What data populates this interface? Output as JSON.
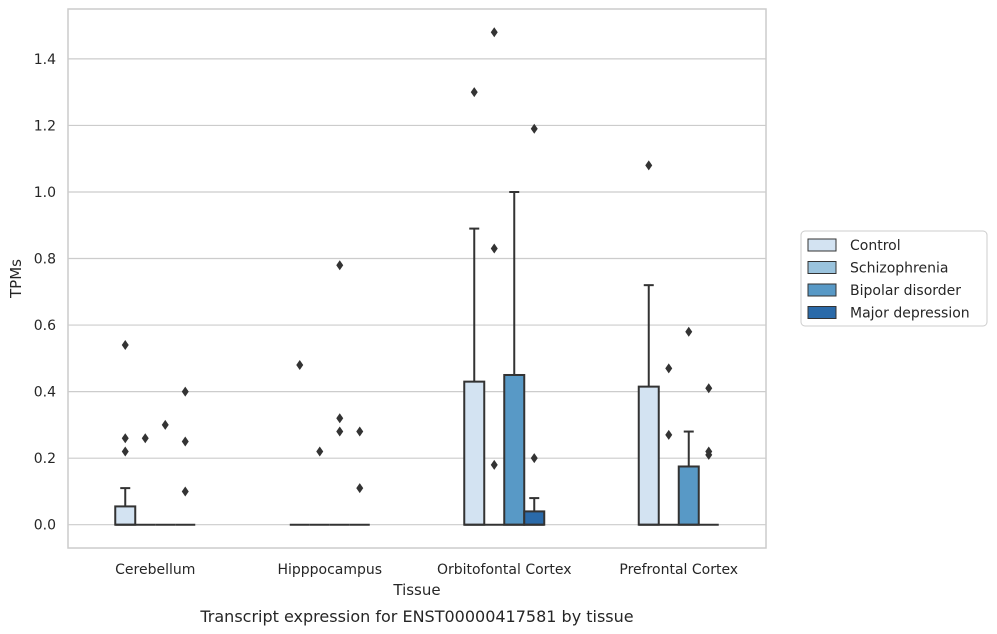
{
  "chart_data": {
    "type": "boxplot",
    "xlabel": "Tissue",
    "ylabel": "TPMs",
    "caption": "Transcript expression for ENST00000417581 by tissue",
    "ylim": [
      -0.07,
      1.55
    ],
    "yticks": [
      "0.0",
      "0.2",
      "0.4",
      "0.6",
      "0.8",
      "1.0",
      "1.2",
      "1.4"
    ],
    "grid": "horizontal",
    "legend_position": "right",
    "categories": [
      "Cerebellum",
      "Hipppocampus",
      "Orbitofontal Cortex",
      "Prefrontal Cortex"
    ],
    "series": [
      {
        "name": "Control",
        "color": "#d3e3f2",
        "boxes": [
          {
            "q1": 0,
            "median": 0,
            "q3": 0.055,
            "whisker_high": 0.11,
            "outliers": [
              0.22,
              0.26,
              0.54
            ]
          },
          {
            "q1": 0,
            "median": 0,
            "q3": 0,
            "whisker_high": 0,
            "outliers": [
              0.48
            ]
          },
          {
            "q1": 0,
            "median": 0,
            "q3": 0.43,
            "whisker_high": 0.89,
            "outliers": [
              1.3
            ]
          },
          {
            "q1": 0,
            "median": 0,
            "q3": 0.415,
            "whisker_high": 0.72,
            "outliers": [
              1.08
            ]
          }
        ]
      },
      {
        "name": "Schizophrenia",
        "color": "#9ac3dd",
        "boxes": [
          {
            "q1": 0,
            "median": 0,
            "q3": 0,
            "whisker_high": 0,
            "outliers": [
              0.26
            ]
          },
          {
            "q1": 0,
            "median": 0,
            "q3": 0,
            "whisker_high": 0,
            "outliers": [
              0.22
            ]
          },
          {
            "q1": 0,
            "median": 0,
            "q3": 0,
            "whisker_high": 0,
            "outliers": [
              0.18,
              0.83,
              1.48
            ]
          },
          {
            "q1": 0,
            "median": 0,
            "q3": 0,
            "whisker_high": 0,
            "outliers": [
              0.27,
              0.47
            ]
          }
        ]
      },
      {
        "name": "Bipolar disorder",
        "color": "#5899c6",
        "boxes": [
          {
            "q1": 0,
            "median": 0,
            "q3": 0,
            "whisker_high": 0,
            "outliers": [
              0.3
            ]
          },
          {
            "q1": 0,
            "median": 0,
            "q3": 0,
            "whisker_high": 0,
            "outliers": [
              0.28,
              0.32,
              0.78
            ]
          },
          {
            "q1": 0,
            "median": 0,
            "q3": 0.45,
            "whisker_high": 1.0,
            "outliers": []
          },
          {
            "q1": 0,
            "median": 0,
            "q3": 0.175,
            "whisker_high": 0.28,
            "outliers": [
              0.58
            ]
          }
        ]
      },
      {
        "name": "Major depression",
        "color": "#2a6aa9",
        "boxes": [
          {
            "q1": 0,
            "median": 0,
            "q3": 0,
            "whisker_high": 0,
            "outliers": [
              0.1,
              0.25,
              0.4
            ]
          },
          {
            "q1": 0,
            "median": 0,
            "q3": 0,
            "whisker_high": 0,
            "outliers": [
              0.11,
              0.28
            ]
          },
          {
            "q1": 0,
            "median": 0,
            "q3": 0.04,
            "whisker_high": 0.08,
            "outliers": [
              0.2,
              1.19
            ]
          },
          {
            "q1": 0,
            "median": 0,
            "q3": 0,
            "whisker_high": 0,
            "outliers": [
              0.21,
              0.22,
              0.41
            ]
          }
        ]
      }
    ]
  }
}
